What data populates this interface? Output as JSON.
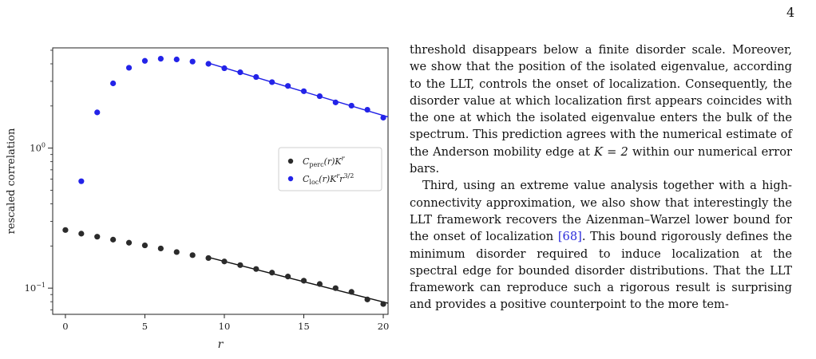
{
  "page": {
    "number": "4"
  },
  "figure": {
    "chart_data": {
      "type": "scatter",
      "xlabel": "r",
      "ylabel": "rescaled correlation",
      "x_ticks": [
        "0",
        "5",
        "10",
        "15",
        "20"
      ],
      "y_ticks": [
        {
          "base": "10",
          "exp": "0",
          "value": 1.0
        },
        {
          "base": "10",
          "exp": "−1",
          "value": 0.1
        }
      ],
      "yscale": "log",
      "xlim": [
        -0.8,
        20.3
      ],
      "ylim": [
        0.065,
        5.2
      ],
      "legend_position": "center-right",
      "series": [
        {
          "name": "C_perc(r)K^r",
          "legend": {
            "main": "C",
            "sub": "perc",
            "arg": "(r)K",
            "sup": "r",
            "extra": "",
            "extra_sup": ""
          },
          "color": "#2b2b2b",
          "x": [
            0,
            1,
            2,
            3,
            4,
            5,
            6,
            7,
            8,
            9,
            10,
            11,
            12,
            13,
            14,
            15,
            16,
            17,
            18,
            19,
            20
          ],
          "y": [
            0.26,
            0.245,
            0.233,
            0.222,
            0.211,
            0.202,
            0.192,
            0.181,
            0.172,
            0.164,
            0.155,
            0.146,
            0.137,
            0.129,
            0.121,
            0.113,
            0.107,
            0.1,
            0.094,
            0.083,
            0.077
          ],
          "fit": {
            "from": 9,
            "to": 20.3,
            "start": 0.166,
            "end": 0.078,
            "color": "#111111"
          }
        },
        {
          "name": "C_loc(r)K^r r^{3/2}",
          "legend": {
            "main": "C",
            "sub": "loc",
            "arg": "(r)K",
            "sup": "r",
            "extra": "r",
            "extra_sup": "3/2"
          },
          "color": "#2323e8",
          "x": [
            1,
            2,
            3,
            4,
            5,
            6,
            7,
            8,
            9,
            10,
            11,
            12,
            13,
            14,
            15,
            16,
            17,
            18,
            19,
            20
          ],
          "y": [
            0.58,
            1.8,
            2.9,
            3.75,
            4.2,
            4.35,
            4.3,
            4.15,
            4.0,
            3.72,
            3.48,
            3.22,
            2.96,
            2.78,
            2.55,
            2.35,
            2.12,
            2.01,
            1.88,
            1.65
          ],
          "fit": {
            "from": 9,
            "to": 20.3,
            "start": 4.05,
            "end": 1.67,
            "color": "#1f1fe6"
          }
        }
      ]
    }
  },
  "text": {
    "p1_a": "threshold disappears below a finite disorder scale. Moreover, we show that the position of the isolated eigenvalue, according to the LLT, controls the onset of localization. Consequently, the disorder value at which localization first appears coincides with the one at which the isolated eigenvalue enters the bulk of the spectrum. This prediction agrees with the numerical estimate of the Anderson mobility edge at ",
    "p1_math": "K = 2",
    "p1_b": " within our numerical error bars.",
    "p2_a": "Third, using an extreme value analysis together with a high-connectivity approximation, we also show that interestingly the LLT framework recovers the Aizenman–Warzel lower bound for the onset of localization ",
    "p2_cite": "[68]",
    "p2_b": ". This bound rigorously defines the minimum disorder required to induce localization at the spectral edge for bounded disorder distributions. That the LLT framework can reproduce such a rigorous result is surprising and provides a positive counterpoint to the more tem-"
  }
}
